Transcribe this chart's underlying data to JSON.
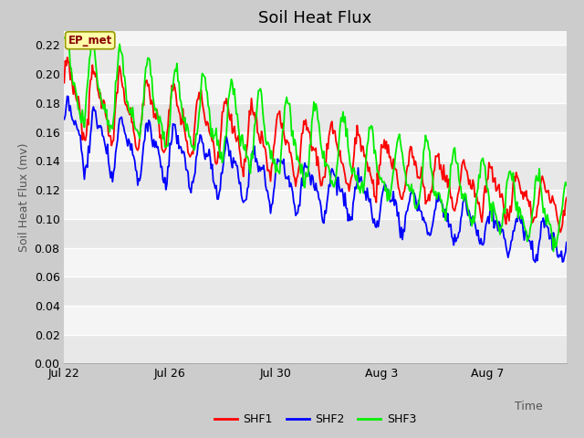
{
  "title": "Soil Heat Flux",
  "ylabel": "Soil Heat Flux (mv)",
  "xlabel": "Time",
  "xtick_labels": [
    "Jul 22",
    "Jul 26",
    "Jul 30",
    "Aug 3",
    "Aug 7"
  ],
  "ylim": [
    0.0,
    0.23
  ],
  "yticks": [
    0.0,
    0.02,
    0.04,
    0.06,
    0.08,
    0.1,
    0.12,
    0.14,
    0.16,
    0.18,
    0.2,
    0.22
  ],
  "bg_color": "#cccccc",
  "plot_bg_color": "#f5f5f5",
  "band_colors": [
    "#e8e8e8",
    "#f5f5f5"
  ],
  "legend_items": [
    "SHF1",
    "SHF2",
    "SHF3"
  ],
  "ep_met_label": "EP_met",
  "ep_met_bg": "#ffffaa",
  "ep_met_border": "#999900",
  "ep_met_text_color": "#880000",
  "title_fontsize": 13,
  "axis_label_fontsize": 9,
  "tick_fontsize": 9,
  "shf1_color": "#ff0000",
  "shf2_color": "#0000ff",
  "shf3_color": "#00ee00",
  "line_width": 1.3
}
